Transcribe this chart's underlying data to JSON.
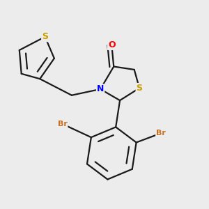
{
  "bg_color": "#ececec",
  "bond_color": "#1a1a1a",
  "bond_width": 1.6,
  "label_colors": {
    "S": "#c8a000",
    "N": "#0000ff",
    "O": "#ff0000",
    "Br": "#c87020"
  }
}
